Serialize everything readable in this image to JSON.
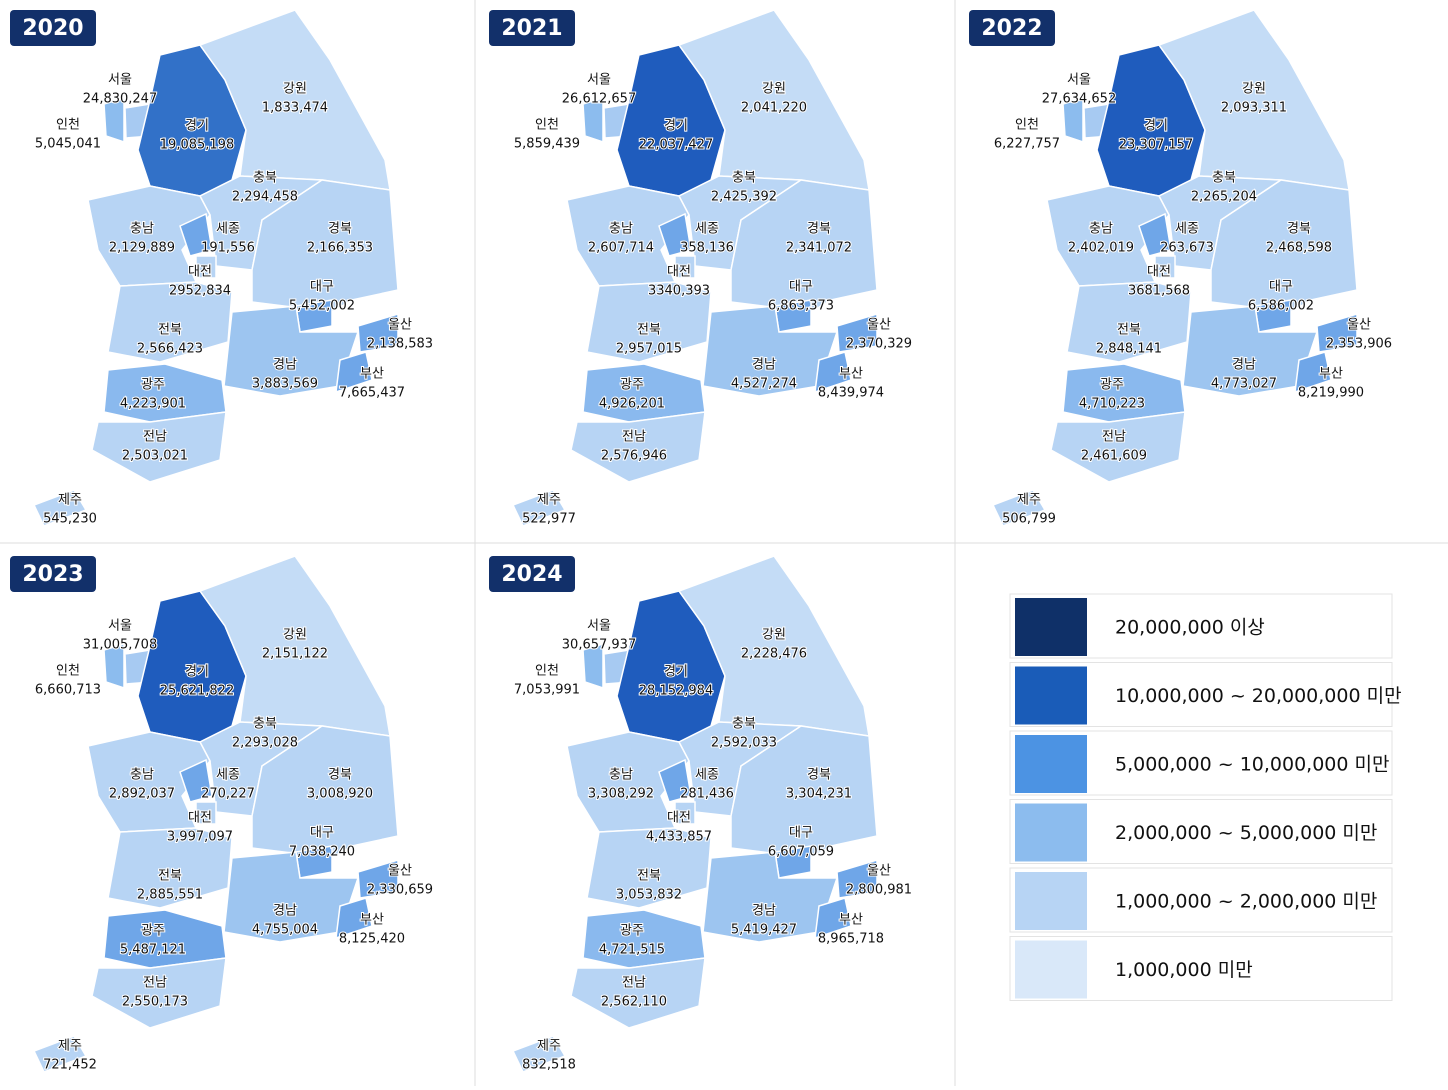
{
  "panels": [
    {
      "year": "2020",
      "regions": [
        {
          "name": "서울",
          "value": "24,830,247",
          "color": "#a7caf2"
        },
        {
          "name": "인천",
          "value": "5,045,041",
          "color": "#8cbcee"
        },
        {
          "name": "경기",
          "value": "19,085,198",
          "color": "#3271c8"
        },
        {
          "name": "강원",
          "value": "1,833,474",
          "color": "#c4dcf6"
        },
        {
          "name": "충북",
          "value": "2,294,458",
          "color": "#bad6f5"
        },
        {
          "name": "충남",
          "value": "2,129,889",
          "color": "#b7d4f4"
        },
        {
          "name": "세종",
          "value": "191,556",
          "color": "#6fa6e8"
        },
        {
          "name": "대전",
          "value": "2952,834",
          "color": "#b7d4f4"
        },
        {
          "name": "경북",
          "value": "2,166,353",
          "color": "#b7d4f4"
        },
        {
          "name": "대구",
          "value": "5,452,002",
          "color": "#6fa6e8"
        },
        {
          "name": "전북",
          "value": "2,566,423",
          "color": "#b7d4f4"
        },
        {
          "name": "경남",
          "value": "3,883,569",
          "color": "#9dc5f0"
        },
        {
          "name": "울산",
          "value": "2,138,583",
          "color": "#6fa6e8"
        },
        {
          "name": "부산",
          "value": "7,665,437",
          "color": "#6fa6e8"
        },
        {
          "name": "광주",
          "value": "4,223,901",
          "color": "#8ab9ee"
        },
        {
          "name": "전남",
          "value": "2,503,021",
          "color": "#b7d4f4"
        },
        {
          "name": "제주",
          "value": "545,230",
          "color": "#b7d4f4"
        }
      ]
    },
    {
      "year": "2021",
      "regions": [
        {
          "name": "서울",
          "value": "26,612,657",
          "color": "#a7caf2"
        },
        {
          "name": "인천",
          "value": "5,859,439",
          "color": "#8cbcee"
        },
        {
          "name": "경기",
          "value": "22,037,427",
          "color": "#1f5cbd"
        },
        {
          "name": "강원",
          "value": "2,041,220",
          "color": "#c4dcf6"
        },
        {
          "name": "충북",
          "value": "2,425,392",
          "color": "#bad6f5"
        },
        {
          "name": "충남",
          "value": "2,607,714",
          "color": "#b7d4f4"
        },
        {
          "name": "세종",
          "value": "358,136",
          "color": "#6fa6e8"
        },
        {
          "name": "대전",
          "value": "3340,393",
          "color": "#b7d4f4"
        },
        {
          "name": "경북",
          "value": "2,341,072",
          "color": "#b7d4f4"
        },
        {
          "name": "대구",
          "value": "6,863,373",
          "color": "#6fa6e8"
        },
        {
          "name": "전북",
          "value": "2,957,015",
          "color": "#b7d4f4"
        },
        {
          "name": "경남",
          "value": "4,527,274",
          "color": "#9dc5f0"
        },
        {
          "name": "울산",
          "value": "2,370,329",
          "color": "#6fa6e8"
        },
        {
          "name": "부산",
          "value": "8,439,974",
          "color": "#6fa6e8"
        },
        {
          "name": "광주",
          "value": "4,926,201",
          "color": "#8ab9ee"
        },
        {
          "name": "전남",
          "value": "2,576,946",
          "color": "#b7d4f4"
        },
        {
          "name": "제주",
          "value": "522,977",
          "color": "#b7d4f4"
        }
      ]
    },
    {
      "year": "2022",
      "regions": [
        {
          "name": "서울",
          "value": "27,634,652",
          "color": "#a7caf2"
        },
        {
          "name": "인천",
          "value": "6,227,757",
          "color": "#8cbcee"
        },
        {
          "name": "경기",
          "value": "23,307,157",
          "color": "#1f5cbd"
        },
        {
          "name": "강원",
          "value": "2,093,311",
          "color": "#c4dcf6"
        },
        {
          "name": "충북",
          "value": "2,265,204",
          "color": "#bad6f5"
        },
        {
          "name": "충남",
          "value": "2,402,019",
          "color": "#b7d4f4"
        },
        {
          "name": "세종",
          "value": "263,673",
          "color": "#6fa6e8"
        },
        {
          "name": "대전",
          "value": "3681,568",
          "color": "#b7d4f4"
        },
        {
          "name": "경북",
          "value": "2,468,598",
          "color": "#b7d4f4"
        },
        {
          "name": "대구",
          "value": "6,586,002",
          "color": "#6fa6e8"
        },
        {
          "name": "전북",
          "value": "2,848,141",
          "color": "#b7d4f4"
        },
        {
          "name": "경남",
          "value": "4,773,027",
          "color": "#9dc5f0"
        },
        {
          "name": "울산",
          "value": "2,353,906",
          "color": "#6fa6e8"
        },
        {
          "name": "부산",
          "value": "8,219,990",
          "color": "#6fa6e8"
        },
        {
          "name": "광주",
          "value": "4,710,223",
          "color": "#8ab9ee"
        },
        {
          "name": "전남",
          "value": "2,461,609",
          "color": "#b7d4f4"
        },
        {
          "name": "제주",
          "value": "506,799",
          "color": "#b7d4f4"
        }
      ]
    },
    {
      "year": "2023",
      "regions": [
        {
          "name": "서울",
          "value": "31,005,708",
          "color": "#a7caf2"
        },
        {
          "name": "인천",
          "value": "6,660,713",
          "color": "#8cbcee"
        },
        {
          "name": "경기",
          "value": "25,621,822",
          "color": "#1f5cbd"
        },
        {
          "name": "강원",
          "value": "2,151,122",
          "color": "#c4dcf6"
        },
        {
          "name": "충북",
          "value": "2,293,028",
          "color": "#bad6f5"
        },
        {
          "name": "충남",
          "value": "2,892,037",
          "color": "#b7d4f4"
        },
        {
          "name": "세종",
          "value": "270,227",
          "color": "#6fa6e8"
        },
        {
          "name": "대전",
          "value": "3,997,097",
          "color": "#b7d4f4"
        },
        {
          "name": "경북",
          "value": "3,008,920",
          "color": "#b7d4f4"
        },
        {
          "name": "대구",
          "value": "7,038,240",
          "color": "#6fa6e8"
        },
        {
          "name": "전북",
          "value": "2,885,551",
          "color": "#b7d4f4"
        },
        {
          "name": "경남",
          "value": "4,755,004",
          "color": "#9dc5f0"
        },
        {
          "name": "울산",
          "value": "2,330,659",
          "color": "#6fa6e8"
        },
        {
          "name": "부산",
          "value": "8,125,420",
          "color": "#6fa6e8"
        },
        {
          "name": "광주",
          "value": "5,487,121",
          "color": "#6fa6e8"
        },
        {
          "name": "전남",
          "value": "2,550,173",
          "color": "#b7d4f4"
        },
        {
          "name": "제주",
          "value": "721,452",
          "color": "#b7d4f4"
        }
      ]
    },
    {
      "year": "2024",
      "regions": [
        {
          "name": "서울",
          "value": "30,657,937",
          "color": "#a7caf2"
        },
        {
          "name": "인천",
          "value": "7,053,991",
          "color": "#8cbcee"
        },
        {
          "name": "경기",
          "value": "28,152,984",
          "color": "#1f5cbd"
        },
        {
          "name": "강원",
          "value": "2,228,476",
          "color": "#c4dcf6"
        },
        {
          "name": "충북",
          "value": "2,592,033",
          "color": "#bad6f5"
        },
        {
          "name": "충남",
          "value": "3,308,292",
          "color": "#b7d4f4"
        },
        {
          "name": "세종",
          "value": "281,436",
          "color": "#6fa6e8"
        },
        {
          "name": "대전",
          "value": "4,433,857",
          "color": "#b7d4f4"
        },
        {
          "name": "경북",
          "value": "3,304,231",
          "color": "#b7d4f4"
        },
        {
          "name": "대구",
          "value": "6,607,059",
          "color": "#6fa6e8"
        },
        {
          "name": "전북",
          "value": "3,053,832",
          "color": "#b7d4f4"
        },
        {
          "name": "경남",
          "value": "5,419,427",
          "color": "#9dc5f0"
        },
        {
          "name": "울산",
          "value": "2,800,981",
          "color": "#6fa6e8"
        },
        {
          "name": "부산",
          "value": "8,965,718",
          "color": "#6fa6e8"
        },
        {
          "name": "광주",
          "value": "4,721,515",
          "color": "#8ab9ee"
        },
        {
          "name": "전남",
          "value": "2,562,110",
          "color": "#b7d4f4"
        },
        {
          "name": "제주",
          "value": "832,518",
          "color": "#b7d4f4"
        }
      ]
    }
  ],
  "legend": [
    {
      "label": "20,000,000 이상",
      "color": "#0f3068"
    },
    {
      "label": "10,000,000 ~ 20,000,000 미만",
      "color": "#1a5cb8"
    },
    {
      "label": "5,000,000 ~ 10,000,000 미만",
      "color": "#4c93e3"
    },
    {
      "label": "2,000,000 ~ 5,000,000 미만",
      "color": "#8cbcee"
    },
    {
      "label": "1,000,000 ~ 2,000,000 미만",
      "color": "#b7d4f4"
    },
    {
      "label": "1,000,000 미만",
      "color": "#d9e8f9"
    }
  ]
}
